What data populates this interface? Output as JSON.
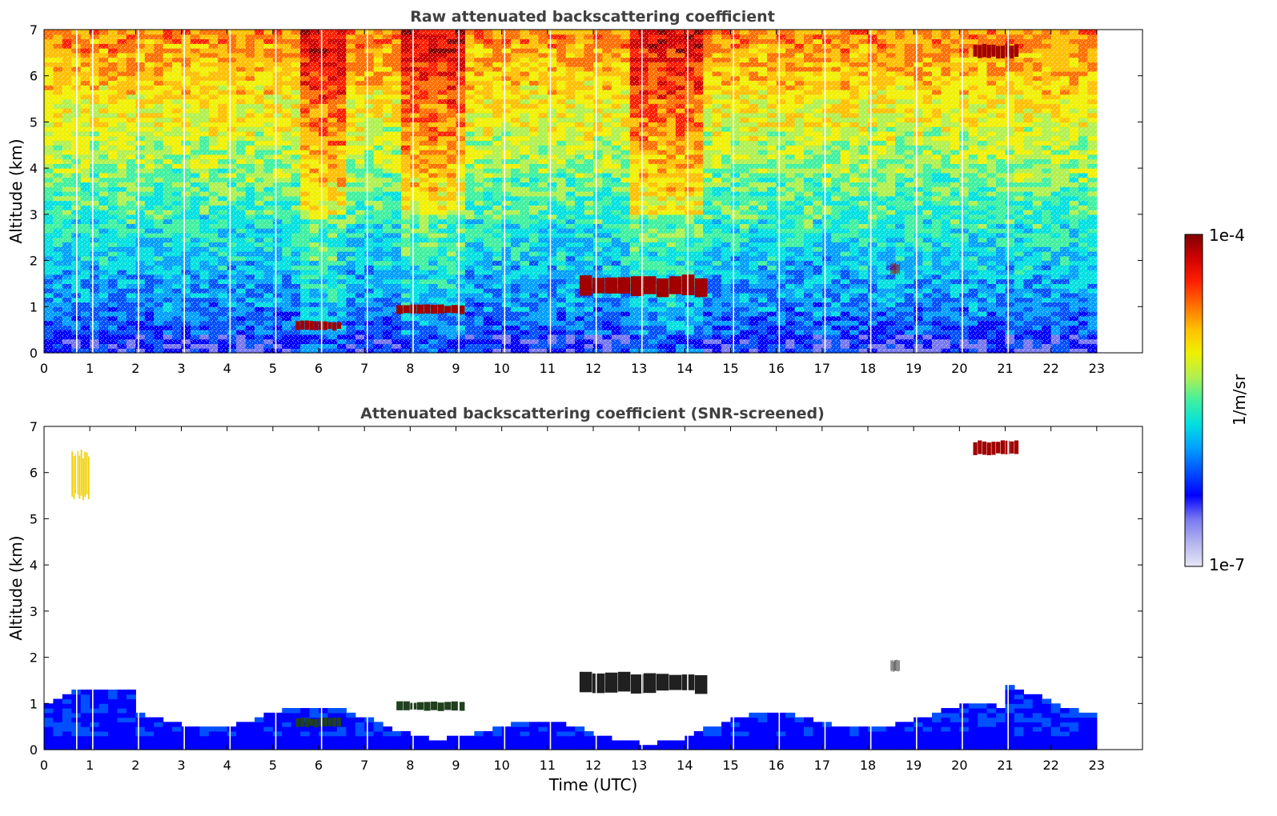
{
  "chart_data": [
    {
      "type": "heatmap",
      "title": "Raw attenuated backscattering coefficient",
      "xlabel": "",
      "ylabel": "Altitude (km)",
      "xlim": [
        0,
        24
      ],
      "ylim": [
        0,
        7
      ],
      "xticks": [
        "0",
        "1",
        "2",
        "3",
        "4",
        "5",
        "6",
        "7",
        "8",
        "9",
        "10",
        "11",
        "12",
        "13",
        "14",
        "15",
        "16",
        "17",
        "18",
        "19",
        "20",
        "21",
        "22",
        "23"
      ],
      "yticks": [
        "0",
        "1",
        "2",
        "3",
        "4",
        "5",
        "6",
        "7"
      ],
      "data_end_time": 23,
      "color_scale": "log",
      "features": [
        {
          "name": "aerosol layer",
          "time": [
            5.5,
            6.5
          ],
          "altitude": [
            0.5,
            0.7
          ]
        },
        {
          "name": "aerosol layer",
          "time": [
            7.7,
            9.2
          ],
          "altitude": [
            0.85,
            1.05
          ]
        },
        {
          "name": "cloud",
          "time": [
            11.7,
            14.5
          ],
          "altitude": [
            1.25,
            1.7
          ]
        },
        {
          "name": "cloud",
          "time": [
            18.5,
            18.7
          ],
          "altitude": [
            1.7,
            1.95
          ]
        },
        {
          "name": "high cloud",
          "time": [
            20.3,
            21.3
          ],
          "altitude": [
            6.4,
            6.7
          ]
        }
      ]
    },
    {
      "type": "heatmap",
      "title": "Attenuated backscattering coefficient (SNR-screened)",
      "xlabel": "Time (UTC)",
      "ylabel": "Altitude (km)",
      "xlim": [
        0,
        24
      ],
      "ylim": [
        0,
        7
      ],
      "xticks": [
        "0",
        "1",
        "2",
        "3",
        "4",
        "5",
        "6",
        "7",
        "8",
        "9",
        "10",
        "11",
        "12",
        "13",
        "14",
        "15",
        "16",
        "17",
        "18",
        "19",
        "20",
        "21",
        "22",
        "23"
      ],
      "yticks": [
        "0",
        "1",
        "2",
        "3",
        "4",
        "5",
        "6",
        "7"
      ],
      "data_end_time": 23,
      "color_scale": "log",
      "features": [
        {
          "name": "boundary layer",
          "time": [
            0,
            23
          ],
          "altitude": [
            0,
            1.2
          ]
        },
        {
          "name": "aerosol layer",
          "time": [
            5.5,
            6.5
          ],
          "altitude": [
            0.5,
            0.7
          ]
        },
        {
          "name": "aerosol layer",
          "time": [
            7.7,
            9.2
          ],
          "altitude": [
            0.85,
            1.05
          ]
        },
        {
          "name": "cloud",
          "time": [
            11.7,
            14.5
          ],
          "altitude": [
            1.25,
            1.7
          ]
        },
        {
          "name": "cloud",
          "time": [
            18.5,
            18.7
          ],
          "altitude": [
            1.7,
            1.95
          ]
        },
        {
          "name": "ice cloud",
          "time": [
            0.6,
            1.0
          ],
          "altitude": [
            5.5,
            6.5
          ]
        },
        {
          "name": "high cloud",
          "time": [
            20.3,
            21.3
          ],
          "altitude": [
            6.4,
            6.7
          ]
        }
      ]
    }
  ],
  "colorbar": {
    "label": "1/m/sr",
    "min_label": "1e-7",
    "max_label": "1e-4",
    "colors": [
      "#e6e6f5",
      "#b4b4f0",
      "#7878f0",
      "#0000ff",
      "#0050ff",
      "#00a0ff",
      "#00e0e0",
      "#40f0a0",
      "#b0f050",
      "#f0f000",
      "#ffc000",
      "#ff7000",
      "#ff2000",
      "#d00000",
      "#800000"
    ]
  }
}
